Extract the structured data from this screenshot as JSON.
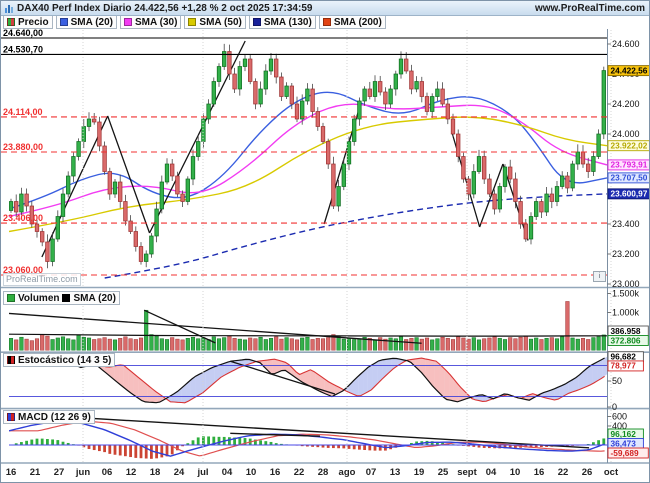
{
  "titlebar": {
    "title": "DAX40 Perf Index Diario 24.422,56 +1,28 % 2 oct 2025 17:34:59",
    "url": "www.ProRealTime.com"
  },
  "price_legend": {
    "items": [
      {
        "label": "Precio",
        "color": "#2fae3e",
        "color2": "#d04040"
      },
      {
        "label": "SMA (20)",
        "color": "#3a5fe0"
      },
      {
        "label": "SMA (30)",
        "color": "#f23cf2"
      },
      {
        "label": "SMA (50)",
        "color": "#d8ca00"
      },
      {
        "label": "SMA (130)",
        "color": "#18209a"
      },
      {
        "label": "SMA (200)",
        "color": "#e24212"
      }
    ]
  },
  "indicator_legends": {
    "volume": {
      "items": [
        {
          "label": "Volumen",
          "color": "#2fae3e"
        },
        {
          "label": "SMA (20)",
          "color": "#000000"
        }
      ]
    },
    "stochastic": {
      "label": "Estocástico (14 3 5)",
      "color": "#000000",
      "color2": "#d22222"
    },
    "macd": {
      "label": "MACD (12 26 9)",
      "color": "#2f3fd8",
      "color2": "#d22222"
    }
  },
  "watermark": "ProRealTime.com",
  "misc": {
    "info": "i"
  },
  "chart_data": {
    "type": "candlestick",
    "title": "DAX40 Perf Index Diario",
    "price": {
      "last": 24422.56,
      "closes": [
        23550,
        23480,
        23600,
        23520,
        23400,
        23350,
        23280,
        23150,
        23300,
        23450,
        23600,
        23720,
        23850,
        23950,
        24050,
        24100,
        24080,
        23920,
        23750,
        23600,
        23680,
        23550,
        23420,
        23350,
        23250,
        23150,
        23200,
        23320,
        23500,
        23680,
        23800,
        23720,
        23600,
        23550,
        23700,
        23850,
        23950,
        24100,
        24200,
        24350,
        24450,
        24550,
        24400,
        24300,
        24450,
        24500,
        24350,
        24200,
        24300,
        24420,
        24500,
        24380,
        24250,
        24320,
        24200,
        24100,
        24220,
        24300,
        24150,
        24050,
        23950,
        23800,
        23520,
        23650,
        23800,
        23950,
        24100,
        24220,
        24300,
        24250,
        24350,
        24280,
        24200,
        24300,
        24400,
        24500,
        24420,
        24300,
        24350,
        24250,
        24150,
        24250,
        24300,
        24200,
        24100,
        24000,
        23850,
        23700,
        23600,
        23750,
        23850,
        23700,
        23600,
        23500,
        23650,
        23780,
        23700,
        23550,
        23400,
        23300,
        23450,
        23550,
        23480,
        23600,
        23550,
        23650,
        23720,
        23640,
        23800,
        23880,
        23800,
        23750,
        23850,
        24000,
        24423
      ],
      "ticks": [
        {
          "label": "24.600",
          "value": 24600
        },
        {
          "label": "24.400",
          "value": 24400
        },
        {
          "label": "24.200",
          "value": 24200
        },
        {
          "label": "24.000",
          "value": 24000
        },
        {
          "label": "23.800",
          "value": 23800
        },
        {
          "label": "23.600",
          "value": 23600
        },
        {
          "label": "23.400",
          "value": 23400
        },
        {
          "label": "23.200",
          "value": 23200
        },
        {
          "label": "23.000",
          "value": 23000
        }
      ],
      "markers": [
        {
          "label": "24.422,56",
          "value": 24422.56,
          "fg": "#000000",
          "bg": "#f7c20c",
          "border": "#8a6d00"
        },
        {
          "label": "23.922,02",
          "value": 23922.02,
          "fg": "#b5a900",
          "bg": "#fffde0",
          "border": "#b5a900"
        },
        {
          "label": "23.793,91",
          "value": 23793.91,
          "fg": "#e020e0",
          "bg": "#ffe2ff",
          "border": "#e020e0"
        },
        {
          "label": "23.707,50",
          "value": 23707.5,
          "fg": "#2f4fd8",
          "bg": "#dfe7ff",
          "border": "#2f4fd8"
        },
        {
          "label": "23.600,97",
          "value": 23600.97,
          "fg": "#ffffff",
          "bg": "#1b2bb0",
          "border": "#0e1670"
        }
      ],
      "levels": [
        {
          "label": "24.640,00",
          "value": 24640,
          "color": "#000000",
          "dash": false
        },
        {
          "label": "24.530,70",
          "value": 24530.7,
          "color": "#000000",
          "dash": false
        },
        {
          "label": "24.114,00",
          "value": 24114,
          "color": "#f03030",
          "dash": true
        },
        {
          "label": "23.880,00",
          "value": 23880,
          "color": "#f03030",
          "dash": true
        },
        {
          "label": "23.406,00",
          "value": 23406,
          "color": "#f03030",
          "dash": true
        },
        {
          "label": "23.060,00",
          "value": 23060,
          "color": "#f03030",
          "dash": true
        }
      ],
      "smas": [
        {
          "name": "SMA 20",
          "color": "#3a5fe0",
          "points": [
            [
              0,
              23500
            ],
            [
              0.06,
              23580
            ],
            [
              0.12,
              23700
            ],
            [
              0.18,
              23760
            ],
            [
              0.24,
              23600
            ],
            [
              0.3,
              23560
            ],
            [
              0.36,
              23720
            ],
            [
              0.42,
              24020
            ],
            [
              0.48,
              24230
            ],
            [
              0.54,
              24300
            ],
            [
              0.6,
              24180
            ],
            [
              0.66,
              24120
            ],
            [
              0.72,
              24230
            ],
            [
              0.78,
              24260
            ],
            [
              0.84,
              24140
            ],
            [
              0.88,
              23950
            ],
            [
              0.93,
              23650
            ],
            [
              1,
              23707.5
            ]
          ]
        },
        {
          "name": "SMA 30",
          "color": "#f23cf2",
          "points": [
            [
              0,
              23450
            ],
            [
              0.08,
              23520
            ],
            [
              0.16,
              23640
            ],
            [
              0.24,
              23660
            ],
            [
              0.32,
              23580
            ],
            [
              0.4,
              23780
            ],
            [
              0.48,
              24080
            ],
            [
              0.56,
              24220
            ],
            [
              0.64,
              24160
            ],
            [
              0.72,
              24180
            ],
            [
              0.8,
              24200
            ],
            [
              0.86,
              24080
            ],
            [
              0.92,
              23880
            ],
            [
              1,
              23793.91
            ]
          ]
        },
        {
          "name": "SMA 50",
          "color": "#d8ca00",
          "points": [
            [
              0,
              23350
            ],
            [
              0.1,
              23420
            ],
            [
              0.2,
              23520
            ],
            [
              0.3,
              23560
            ],
            [
              0.4,
              23640
            ],
            [
              0.5,
              23900
            ],
            [
              0.6,
              24060
            ],
            [
              0.7,
              24100
            ],
            [
              0.78,
              24120
            ],
            [
              0.86,
              24060
            ],
            [
              0.93,
              23960
            ],
            [
              1,
              23922.02
            ]
          ]
        },
        {
          "name": "SMA 130",
          "color": "#1b2bb0",
          "dash": true,
          "points": [
            [
              0.16,
              23040
            ],
            [
              0.28,
              23120
            ],
            [
              0.4,
              23260
            ],
            [
              0.52,
              23380
            ],
            [
              0.64,
              23470
            ],
            [
              0.76,
              23540
            ],
            [
              0.88,
              23580
            ],
            [
              1,
              23600.97
            ]
          ]
        }
      ],
      "trendlines": [
        [
          0.055,
          23180,
          0.165,
          24120
        ],
        [
          0.165,
          24120,
          0.235,
          23340
        ],
        [
          0.235,
          23340,
          0.395,
          24620
        ],
        [
          0.527,
          23400,
          0.585,
          24160
        ],
        [
          0.74,
          24020,
          0.787,
          23380
        ],
        [
          0.787,
          23380,
          0.826,
          23800
        ],
        [
          0.826,
          23800,
          0.868,
          23290
        ]
      ]
    },
    "volume": {
      "values": [
        320,
        280,
        350,
        300,
        260,
        310,
        420,
        380,
        290,
        330,
        360,
        310,
        280,
        400,
        350,
        330,
        290,
        310,
        340,
        300,
        280,
        320,
        360,
        310,
        290,
        330,
        1060,
        420,
        380,
        310,
        290,
        340,
        300,
        280,
        320,
        350,
        310,
        330,
        290,
        360,
        310,
        340,
        380,
        320,
        300,
        280,
        330,
        310,
        350,
        290,
        320,
        360,
        300,
        340,
        310,
        280,
        330,
        350,
        290,
        320,
        310,
        340,
        420,
        380,
        300,
        330,
        290,
        310,
        350,
        320,
        280,
        340,
        300,
        330,
        310,
        360,
        290,
        320,
        340,
        300,
        330,
        280,
        310,
        350,
        320,
        290,
        360,
        330,
        300,
        340,
        280,
        310,
        330,
        360,
        320,
        290,
        340,
        310,
        350,
        380,
        300,
        330,
        290,
        320,
        340,
        310,
        360,
        1290,
        330,
        300,
        320,
        290,
        340,
        360,
        410
      ],
      "ticks": [
        {
          "label": "1.500k",
          "value": 1500
        },
        {
          "label": "1.000k",
          "value": 1000
        }
      ],
      "markers": [
        {
          "label": "386.958",
          "value": 386.958,
          "fg": "#000000",
          "bg": "#ffffff",
          "border": "#555555"
        },
        {
          "label": "372.806",
          "value": 372.806,
          "fg": "#0f8a1f",
          "bg": "#e8f9e8",
          "border": "#0f8a1f"
        }
      ],
      "sma_points": [
        [
          0,
          430
        ],
        [
          0.1,
          415
        ],
        [
          0.2,
          400
        ],
        [
          0.3,
          392
        ],
        [
          0.4,
          388
        ],
        [
          0.5,
          384
        ],
        [
          0.6,
          382
        ],
        [
          0.7,
          380
        ],
        [
          0.8,
          378
        ],
        [
          0.9,
          380
        ],
        [
          1,
          387
        ]
      ],
      "trendlines": [
        [
          0,
          975,
          0.69,
          190
        ],
        [
          0.226,
          1060,
          0.345,
          200
        ]
      ]
    },
    "stoch": {
      "k_points": [
        [
          0,
          88
        ],
        [
          0.03,
          92
        ],
        [
          0.06,
          84
        ],
        [
          0.09,
          90
        ],
        [
          0.12,
          76
        ],
        [
          0.145,
          82
        ],
        [
          0.17,
          58
        ],
        [
          0.2,
          30
        ],
        [
          0.225,
          10
        ],
        [
          0.25,
          8
        ],
        [
          0.28,
          28
        ],
        [
          0.31,
          58
        ],
        [
          0.34,
          76
        ],
        [
          0.37,
          88
        ],
        [
          0.4,
          92
        ],
        [
          0.42,
          85
        ],
        [
          0.44,
          62
        ],
        [
          0.46,
          72
        ],
        [
          0.49,
          48
        ],
        [
          0.52,
          30
        ],
        [
          0.54,
          20
        ],
        [
          0.56,
          32
        ],
        [
          0.58,
          55
        ],
        [
          0.6,
          76
        ],
        [
          0.62,
          90
        ],
        [
          0.645,
          94
        ],
        [
          0.67,
          88
        ],
        [
          0.69,
          66
        ],
        [
          0.71,
          38
        ],
        [
          0.73,
          15
        ],
        [
          0.75,
          10
        ],
        [
          0.77,
          18
        ],
        [
          0.79,
          24
        ],
        [
          0.81,
          16
        ],
        [
          0.83,
          26
        ],
        [
          0.85,
          18
        ],
        [
          0.87,
          13
        ],
        [
          0.89,
          26
        ],
        [
          0.91,
          34
        ],
        [
          0.93,
          44
        ],
        [
          0.95,
          58
        ],
        [
          0.97,
          78
        ],
        [
          1,
          96.682
        ]
      ],
      "d_lag": 0.045,
      "hlines": [
        80,
        20
      ],
      "ticks": [
        {
          "label": "50",
          "value": 50
        },
        {
          "label": "0",
          "value": 0
        }
      ],
      "markers": [
        {
          "label": "96,682",
          "value": 96.682,
          "fg": "#000000",
          "bg": "#ffffff",
          "border": "#555555"
        },
        {
          "label": "78,977",
          "value": 78.977,
          "fg": "#d22222",
          "bg": "#ffffff",
          "border": "#d22222"
        }
      ],
      "trendline": [
        0.37,
        88,
        0.545,
        25
      ]
    },
    "macd": {
      "line_points": [
        [
          0,
          300
        ],
        [
          0.04,
          420
        ],
        [
          0.08,
          500
        ],
        [
          0.12,
          460
        ],
        [
          0.16,
          320
        ],
        [
          0.2,
          110
        ],
        [
          0.24,
          -130
        ],
        [
          0.27,
          -235
        ],
        [
          0.3,
          -120
        ],
        [
          0.33,
          -15
        ],
        [
          0.36,
          85
        ],
        [
          0.4,
          195
        ],
        [
          0.44,
          228
        ],
        [
          0.48,
          215
        ],
        [
          0.52,
          170
        ],
        [
          0.56,
          110
        ],
        [
          0.6,
          15
        ],
        [
          0.63,
          -55
        ],
        [
          0.66,
          -20
        ],
        [
          0.7,
          55
        ],
        [
          0.74,
          60
        ],
        [
          0.78,
          15
        ],
        [
          0.82,
          -45
        ],
        [
          0.86,
          -85
        ],
        [
          0.9,
          -115
        ],
        [
          0.94,
          -130
        ],
        [
          0.97,
          -100
        ],
        [
          1,
          36.473
        ]
      ],
      "signal_lag": 0.05,
      "values": {
        "histogram": 96.162,
        "macd": 36.473,
        "signal": -59.689
      },
      "ticks": [
        {
          "label": "600",
          "value": 600
        },
        {
          "label": "400",
          "value": 400
        },
        {
          "label": "200",
          "value": 200
        }
      ],
      "markers": [
        {
          "label": "96,162",
          "fg": "#0f8a1f",
          "bg": "#e8f9e8",
          "border": "#0f8a1f"
        },
        {
          "label": "36,473",
          "fg": "#2f3fd8",
          "bg": "#dfe7ff",
          "border": "#2f3fd8"
        },
        {
          "label": "-59,689",
          "fg": "#d22222",
          "bg": "#ffecec",
          "border": "#d22222"
        }
      ],
      "trendlines": [
        [
          0.085,
          600,
          0.97,
          -60
        ],
        [
          0.37,
          245,
          0.52,
          185
        ]
      ]
    },
    "x_axis": {
      "labels": [
        "16",
        "21",
        "27",
        "jun",
        "06",
        "12",
        "18",
        "24",
        "jul",
        "04",
        "10",
        "16",
        "22",
        "28",
        "ago",
        "07",
        "13",
        "19",
        "25",
        "sept",
        "04",
        "10",
        "16",
        "22",
        "26",
        "oct"
      ],
      "months": [
        "jun",
        "jul",
        "ago",
        "sept",
        "oct"
      ]
    }
  }
}
